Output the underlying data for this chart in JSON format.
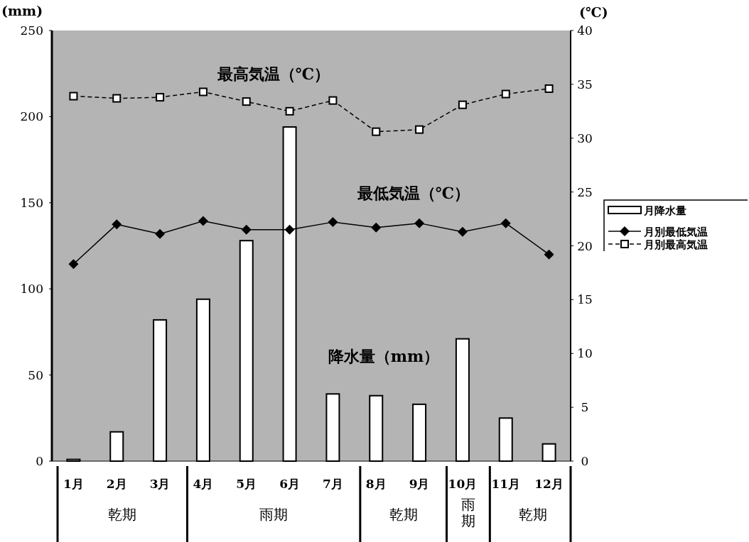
{
  "chart_data": {
    "type": "bar",
    "ylabel": "(mm)",
    "y2label": "(℃)",
    "categories": [
      "1月",
      "2月",
      "3月",
      "4月",
      "5月",
      "6月",
      "7月",
      "8月",
      "9月",
      "10月",
      "11月",
      "12月"
    ],
    "ylim": [
      0,
      250
    ],
    "yticks": [
      0,
      50,
      100,
      150,
      200,
      250
    ],
    "y2lim": [
      0,
      40
    ],
    "y2ticks": [
      0,
      5,
      10,
      15,
      20,
      25,
      30,
      35,
      40
    ],
    "legend": "right",
    "series": [
      {
        "name": "月降水量",
        "color": "#ffffff",
        "values": [
          1,
          17,
          82,
          94,
          128,
          194,
          39,
          38,
          33,
          71,
          25,
          10
        ]
      },
      {
        "name": "月別最低気温",
        "type": "line",
        "axis": "y2",
        "color": "#000000",
        "marker": "diamond",
        "line_style": "solid",
        "values": [
          18.3,
          22.0,
          21.1,
          22.3,
          21.5,
          21.5,
          22.2,
          21.7,
          22.1,
          21.3,
          22.1,
          19.2
        ]
      },
      {
        "name": "月別最高気温",
        "type": "line",
        "axis": "y2",
        "color": "#000000",
        "marker": "square",
        "line_style": "dashed",
        "values": [
          33.9,
          33.7,
          33.8,
          34.3,
          33.4,
          32.5,
          33.5,
          30.6,
          30.8,
          33.1,
          34.1,
          34.6
        ]
      }
    ],
    "annotations": [
      "最高気温（℃）",
      "最低気温（℃）",
      "降水量（mm）",
      "乾期",
      "雨期",
      "乾期",
      "雨期",
      "乾期"
    ]
  }
}
